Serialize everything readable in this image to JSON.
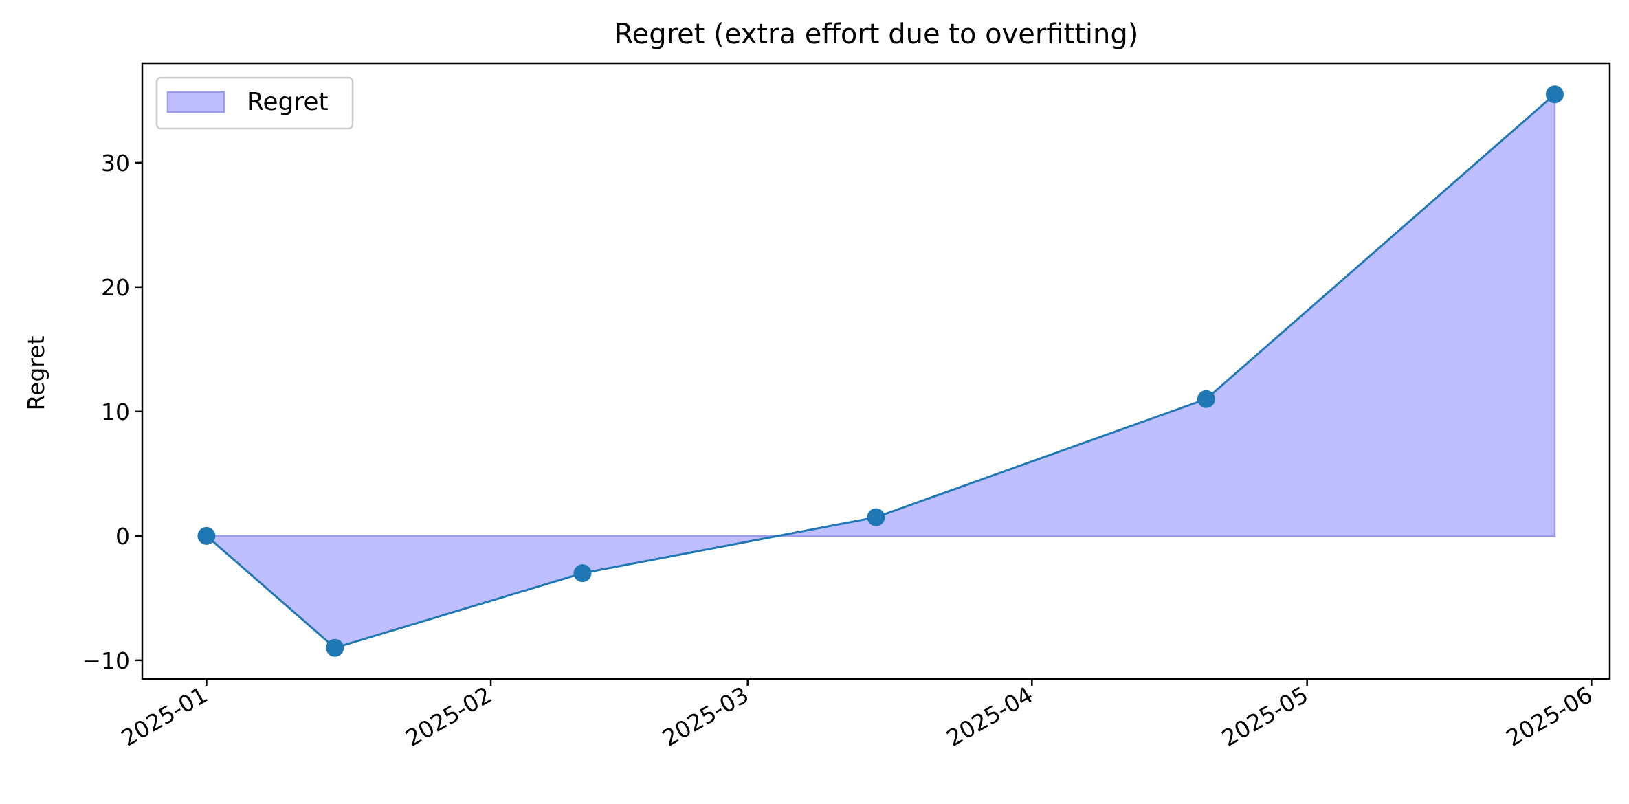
{
  "chart_data": {
    "type": "area",
    "title": "Regret (extra effort due to overfitting)",
    "xlabel": "",
    "ylabel": "Regret",
    "x": [
      "2025-01-01",
      "2025-01-15",
      "2025-02-11",
      "2025-03-15",
      "2025-04-20",
      "2025-05-28"
    ],
    "series": [
      {
        "name": "Regret",
        "values": [
          0,
          -9,
          -3,
          1.5,
          11,
          35.5
        ]
      }
    ],
    "xlim": [
      "2024-12-25",
      "2025-06-03"
    ],
    "ylim": [
      -11.5,
      38
    ],
    "x_ticks": [
      "2025-01",
      "2025-02",
      "2025-03",
      "2025-04",
      "2025-05",
      "2025-06"
    ],
    "x_tick_dates": [
      "2025-01-01",
      "2025-02-01",
      "2025-03-01",
      "2025-04-01",
      "2025-05-01",
      "2025-06-01"
    ],
    "y_ticks": [
      -10,
      0,
      10,
      20,
      30
    ],
    "y_tick_labels": [
      "−10",
      "0",
      "10",
      "20",
      "30"
    ],
    "grid": false,
    "legend": {
      "position": "upper left",
      "entries": [
        "Regret"
      ]
    },
    "colors": {
      "fill": "#bfbfff",
      "fill_edge": "#9a9af0",
      "line": "#1f77b4",
      "marker": "#1f77b4"
    }
  }
}
